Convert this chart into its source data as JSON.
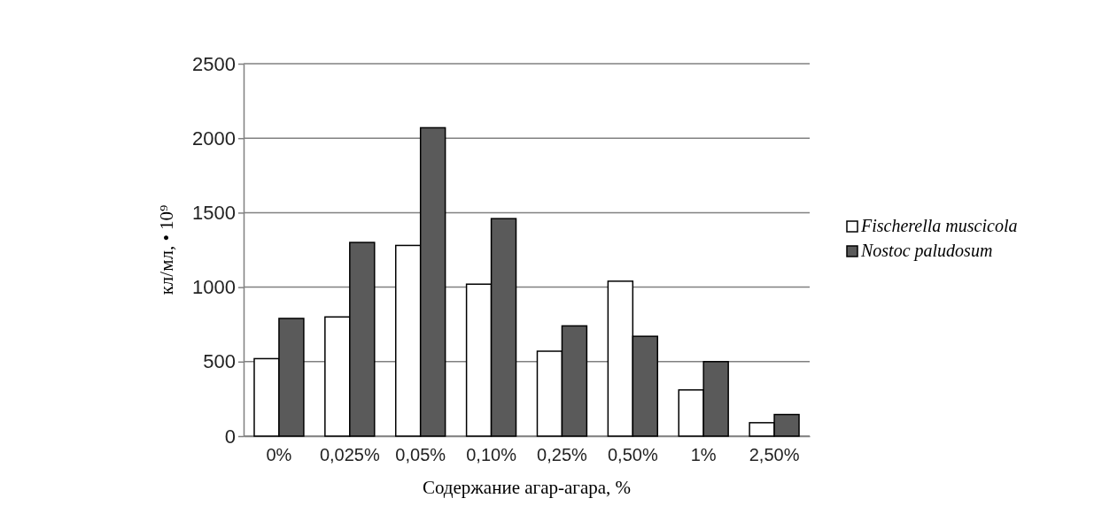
{
  "chart_data": {
    "type": "bar",
    "xlabel": "Содержание агар-агара, %",
    "ylabel": "кл/мл, • 10⁹",
    "categories": [
      "0%",
      "0,025%",
      "0,05%",
      "0,10%",
      "0,25%",
      "0,50%",
      "1%",
      "2,50%"
    ],
    "series": [
      {
        "name": "Fischerella muscicola",
        "color": "#ffffff",
        "values": [
          520,
          800,
          1280,
          1020,
          570,
          1040,
          310,
          90
        ]
      },
      {
        "name": "Nostoc paludosum",
        "color": "#5a5a5a",
        "values": [
          790,
          1300,
          2070,
          1460,
          740,
          670,
          500,
          145
        ]
      }
    ],
    "ylim": [
      0,
      2500
    ],
    "yticks": [
      0,
      500,
      1000,
      1500,
      2000,
      2500
    ],
    "grid": "y",
    "legend": "right"
  }
}
